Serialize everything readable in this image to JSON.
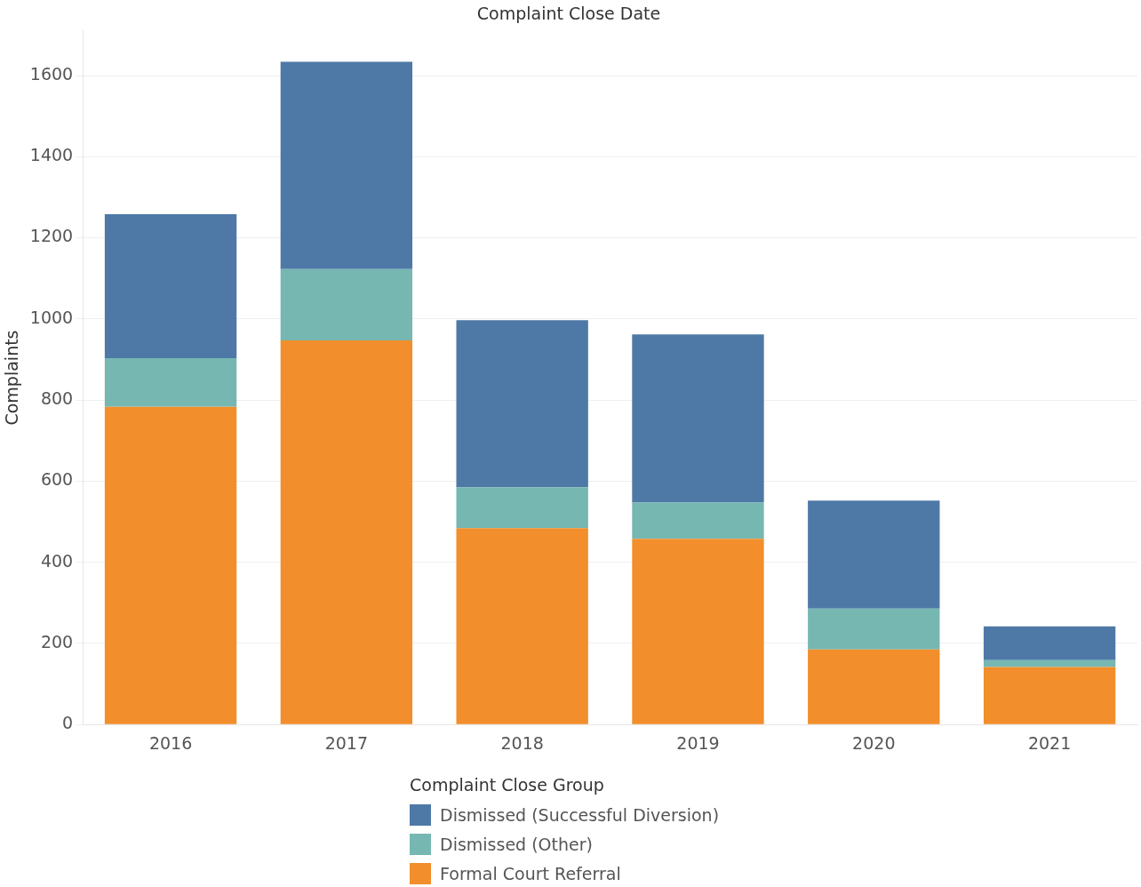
{
  "chart_data": {
    "type": "bar",
    "title": "Complaint Close Date",
    "ylabel": "Complaints",
    "legend_title": "Complaint Close Group",
    "categories": [
      "2016",
      "2017",
      "2018",
      "2019",
      "2020",
      "2021"
    ],
    "series": [
      {
        "name": "Formal Court Referral",
        "color": "#f28e2b",
        "values": [
          783,
          947,
          484,
          458,
          185,
          142
        ]
      },
      {
        "name": "Dismissed (Other)",
        "color": "#76b7b2",
        "values": [
          120,
          176,
          101,
          89,
          101,
          17
        ]
      },
      {
        "name": "Dismissed (Successful Diversion)",
        "color": "#4e79a7",
        "values": [
          355,
          511,
          412,
          415,
          266,
          83
        ]
      }
    ],
    "stacked": true,
    "ylim": [
      0,
      1710
    ],
    "yticks": [
      0,
      200,
      400,
      600,
      800,
      1000,
      1200,
      1400,
      1600
    ],
    "grid": "y",
    "legend": "bottom"
  }
}
